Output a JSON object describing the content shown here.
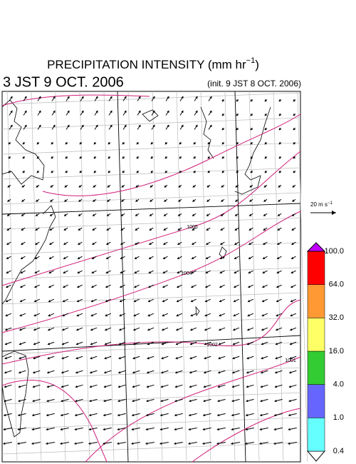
{
  "header": {
    "title": "PRECIPITATION INTENSITY (mm hr",
    "title_sup": "−1",
    "title_end": ")",
    "valid_time": "3 JST 9 OCT. 2006",
    "init_time": "(init. 9 JST 8 OCT. 2006)"
  },
  "wind_scale": {
    "label": "20 m s",
    "label_sup": "−1"
  },
  "isobar_labels": [
    1005,
    1004,
    1002,
    1001
  ],
  "colorbar": {
    "levels": [
      {
        "value": 0.4,
        "label": "0.4"
      },
      {
        "value": 1,
        "label": "1.0"
      },
      {
        "value": 4,
        "label": "4.0"
      },
      {
        "value": 16,
        "label": "16.0"
      },
      {
        "value": 32,
        "label": "32.0"
      },
      {
        "value": 64,
        "label": "64.0"
      },
      {
        "value": 100,
        "label": "100.0"
      }
    ],
    "colors": [
      "#ffffff",
      "#66ffff",
      "#6666ff",
      "#33cc33",
      "#ffff66",
      "#ff9933",
      "#ff0000",
      "#c000ff"
    ]
  }
}
